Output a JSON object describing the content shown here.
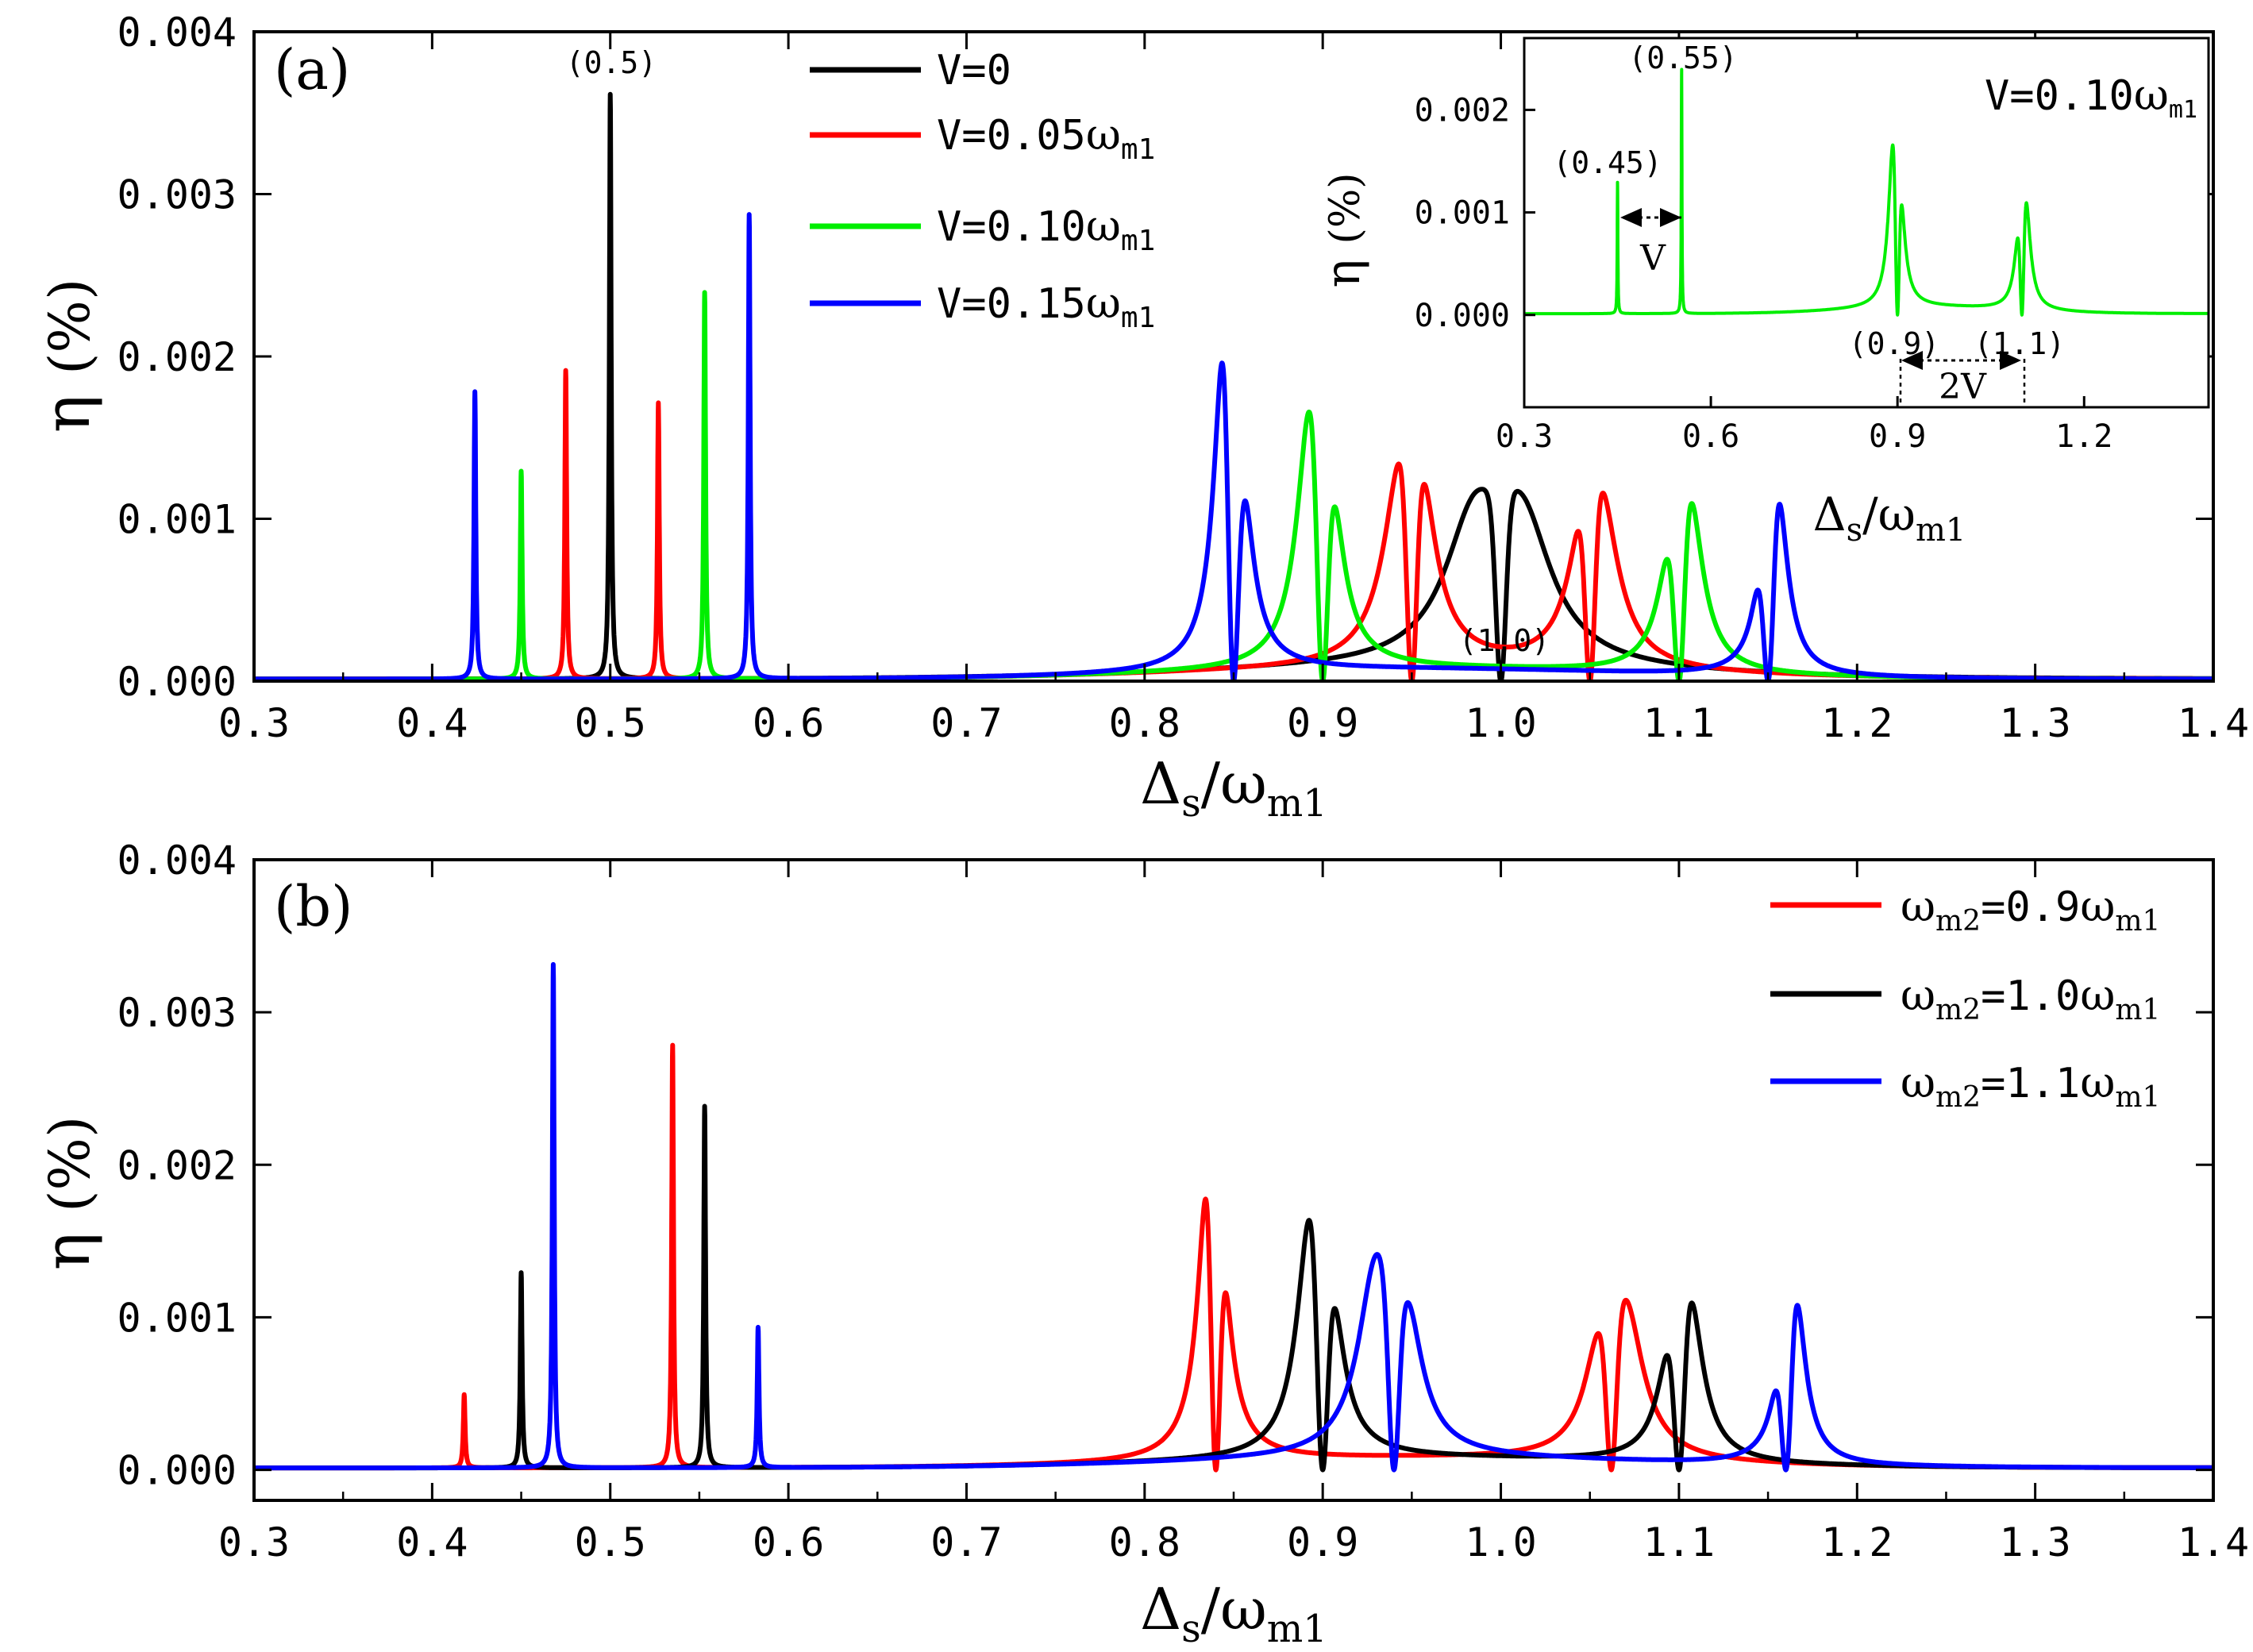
{
  "chart_data": [
    {
      "panel": "(a)",
      "type": "line",
      "xlabel": "Δs/ωm1",
      "ylabel": "η (%)",
      "xlim": [
        0.3,
        1.4
      ],
      "ylim": [
        0.0,
        0.004
      ],
      "xticks": [
        "0.3",
        "0.4",
        "0.5",
        "0.6",
        "0.7",
        "0.8",
        "0.9",
        "1.0",
        "1.1",
        "1.2",
        "1.3",
        "1.4"
      ],
      "yticks": [
        "0.000",
        "0.001",
        "0.002",
        "0.003",
        "0.004"
      ],
      "legend_position": "top-center",
      "annotations": [
        "(0.5)",
        "(1.0)"
      ],
      "series": [
        {
          "name": "V=0",
          "color": "#000000",
          "line_peaks": [
            [
              0.5,
              0.0036,
              0.0006
            ]
          ],
          "lorentz": [
            [
              0.985,
              0.0008,
              0.02
            ],
            [
              1.012,
              0.0008,
              0.02
            ]
          ],
          "dips": [
            [
              1.0,
              0.0
            ]
          ]
        },
        {
          "name": "V=0.05ωm1",
          "color": "#ff0000",
          "line_peaks": [
            [
              0.475,
              0.0019,
              0.0006
            ],
            [
              0.527,
              0.0017,
              0.0006
            ]
          ],
          "lorentz": [
            [
              0.944,
              0.00106,
              0.012
            ],
            [
              0.956,
              0.0007,
              0.01
            ],
            [
              1.046,
              0.0005,
              0.01
            ],
            [
              1.056,
              0.00092,
              0.012
            ]
          ],
          "dips": [
            [
              0.95,
              0.0
            ],
            [
              1.05,
              0.0
            ]
          ]
        },
        {
          "name": "V=0.10ωm1",
          "color": "#00ee00",
          "line_peaks": [
            [
              0.45,
              0.00128,
              0.0006
            ],
            [
              0.553,
              0.00238,
              0.0006
            ]
          ],
          "lorentz": [
            [
              0.893,
              0.00148,
              0.009
            ],
            [
              0.906,
              0.00063,
              0.008
            ],
            [
              1.094,
              0.00042,
              0.008
            ],
            [
              1.106,
              0.001,
              0.009
            ]
          ],
          "dips": [
            [
              0.9,
              0.0
            ],
            [
              1.1,
              0.0
            ]
          ]
        },
        {
          "name": "V=0.15ωm1",
          "color": "#0000ff",
          "line_peaks": [
            [
              0.424,
              0.00177,
              0.0006
            ],
            [
              0.578,
              0.00286,
              0.0006
            ]
          ],
          "lorentz": [
            [
              0.845,
              0.002,
              0.007
            ],
            [
              0.856,
              0.0006,
              0.007
            ],
            [
              1.146,
              0.0003,
              0.006
            ],
            [
              1.155,
              0.00112,
              0.007
            ]
          ],
          "dips": [
            [
              0.85,
              0.0
            ],
            [
              1.15,
              0.0
            ]
          ]
        }
      ],
      "inset": {
        "type": "line",
        "xlabel": "Δs/ωm1",
        "ylabel": "η (%)",
        "xlim": [
          0.3,
          1.4
        ],
        "ylim": [
          -0.0009,
          0.0027
        ],
        "xticks": [
          "0.3",
          "0.6",
          "0.9",
          "1.2"
        ],
        "yticks": [
          "0.000",
          "0.001",
          "0.002"
        ],
        "label": "V=0.10ωm1",
        "annotations": [
          "(0.45)",
          "(0.55)",
          "V",
          "(0.9)",
          "(1.1)",
          "2V"
        ],
        "series": [
          {
            "name": "V=0.10ωm1",
            "color": "#00ee00",
            "line_peaks": [
              [
                0.45,
                0.00128,
                0.0006
              ],
              [
                0.553,
                0.00238,
                0.0006
              ]
            ],
            "lorentz": [
              [
                0.893,
                0.00148,
                0.009
              ],
              [
                0.906,
                0.00063,
                0.008
              ],
              [
                1.094,
                0.00042,
                0.008
              ],
              [
                1.106,
                0.001,
                0.009
              ]
            ],
            "dips": [
              [
                0.9,
                0.0
              ],
              [
                1.1,
                0.0
              ]
            ]
          }
        ]
      }
    },
    {
      "panel": "(b)",
      "type": "line",
      "xlabel": "Δs/ωm1",
      "ylabel": "η (%)",
      "xlim": [
        0.3,
        1.4
      ],
      "ylim": [
        -0.0002,
        0.004
      ],
      "xticks": [
        "0.3",
        "0.4",
        "0.5",
        "0.6",
        "0.7",
        "0.8",
        "0.9",
        "1.0",
        "1.1",
        "1.2",
        "1.3",
        "1.4"
      ],
      "yticks": [
        "0.000",
        "0.001",
        "0.002",
        "0.003",
        "0.004"
      ],
      "legend_position": "top-right",
      "series": [
        {
          "name": "ωm2=0.9ωm1",
          "color": "#ff0000",
          "line_peaks": [
            [
              0.418,
              0.00048,
              0.0006
            ],
            [
              0.535,
              0.00277,
              0.0006
            ]
          ],
          "lorentz": [
            [
              0.837,
              0.00208,
              0.007
            ],
            [
              0.843,
              0.00055,
              0.006
            ],
            [
              1.055,
              0.00052,
              0.01
            ],
            [
              1.07,
              0.00092,
              0.012
            ]
          ],
          "dips": [
            [
              0.84,
              0.0
            ],
            [
              1.062,
              0.0
            ]
          ]
        },
        {
          "name": "ωm2=1.0ωm1",
          "color": "#000000",
          "line_peaks": [
            [
              0.45,
              0.00128,
              0.0006
            ],
            [
              0.553,
              0.00237,
              0.0006
            ]
          ],
          "lorentz": [
            [
              0.893,
              0.00146,
              0.009
            ],
            [
              0.906,
              0.00062,
              0.008
            ],
            [
              1.094,
              0.00042,
              0.008
            ],
            [
              1.106,
              0.001,
              0.009
            ]
          ],
          "dips": [
            [
              0.9,
              0.0
            ],
            [
              1.1,
              0.0
            ]
          ]
        },
        {
          "name": "ωm2=1.1ωm1",
          "color": "#0000ff",
          "line_peaks": [
            [
              0.468,
              0.0033,
              0.0006
            ],
            [
              0.583,
              0.00092,
              0.0006
            ]
          ],
          "lorentz": [
            [
              0.93,
              0.00118,
              0.012
            ],
            [
              0.948,
              0.00068,
              0.01
            ],
            [
              1.157,
              0.00028,
              0.006
            ],
            [
              1.165,
              0.0011,
              0.007
            ]
          ],
          "dips": [
            [
              0.94,
              0.0
            ],
            [
              1.16,
              0.0
            ]
          ]
        }
      ]
    }
  ],
  "text": {
    "panel_a": "(a)",
    "panel_b": "(b)",
    "eta": "η",
    "percent": "(%)",
    "delta": "Δ",
    "sub_s": "s",
    "over": "/",
    "omega": "ω",
    "sub_m1": "m1",
    "sub_m2": "m2",
    "leg_v0": "V=0",
    "leg_v": "V=",
    "leg_005": "0.05",
    "leg_010": "0.10",
    "leg_015": "0.15",
    "b_09": "=0.9",
    "b_10": "=1.0",
    "b_11": "=1.1",
    "ann_05": "(0.5)",
    "ann_10": "(1.0)",
    "inset_045": "(0.45)",
    "inset_055": "(0.55)",
    "inset_V": "V",
    "inset_09": "(0.9)",
    "inset_11": "(1.1)",
    "inset_2V": "2V",
    "inset_label_v": "V=0.10"
  }
}
